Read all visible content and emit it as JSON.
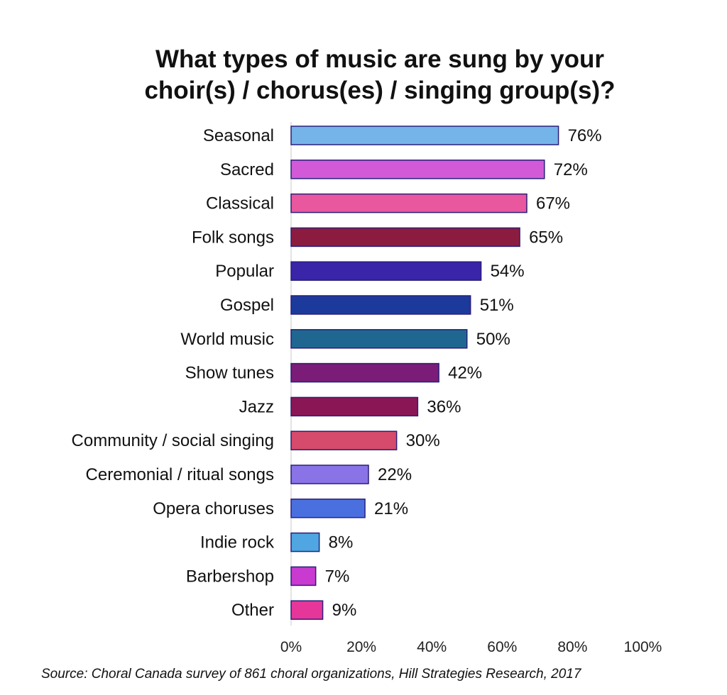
{
  "chart_data": {
    "type": "bar",
    "orientation": "horizontal",
    "title": "What types of music are sung by your choir(s) / chorus(es) / singing group(s)?",
    "title_lines": [
      "What types of music are sung by your",
      "choir(s) / chorus(es) / singing group(s)?"
    ],
    "categories": [
      "Seasonal",
      "Sacred",
      "Classical",
      "Folk songs",
      "Popular",
      "Gospel",
      "World music",
      "Show tunes",
      "Jazz",
      "Community / social singing",
      "Ceremonial / ritual songs",
      "Opera choruses",
      "Indie rock",
      "Barbershop",
      "Other"
    ],
    "values": [
      76,
      72,
      67,
      65,
      54,
      51,
      50,
      42,
      36,
      30,
      22,
      21,
      8,
      7,
      9
    ],
    "value_labels": [
      "76%",
      "72%",
      "67%",
      "65%",
      "54%",
      "51%",
      "50%",
      "42%",
      "36%",
      "30%",
      "22%",
      "21%",
      "8%",
      "7%",
      "9%"
    ],
    "colors": [
      "#74b4e8",
      "#d25ad8",
      "#e9579f",
      "#8b1c40",
      "#3a24a8",
      "#1c3a9c",
      "#1f6690",
      "#7a1c78",
      "#8b1656",
      "#d64a6c",
      "#8a73e6",
      "#4a70e0",
      "#50a6e0",
      "#c83ad0",
      "#e6369a"
    ],
    "bar_outline_color": "#2a1f7a",
    "xlim": [
      0,
      100
    ],
    "x_ticks": [
      "0%",
      "20%",
      "40%",
      "60%",
      "80%",
      "100%"
    ],
    "xlabel": "",
    "ylabel": "",
    "grid": false,
    "legend": "none"
  },
  "source_note": "Source: Choral Canada survey of 861 choral organizations, Hill Strategies Research, 2017"
}
